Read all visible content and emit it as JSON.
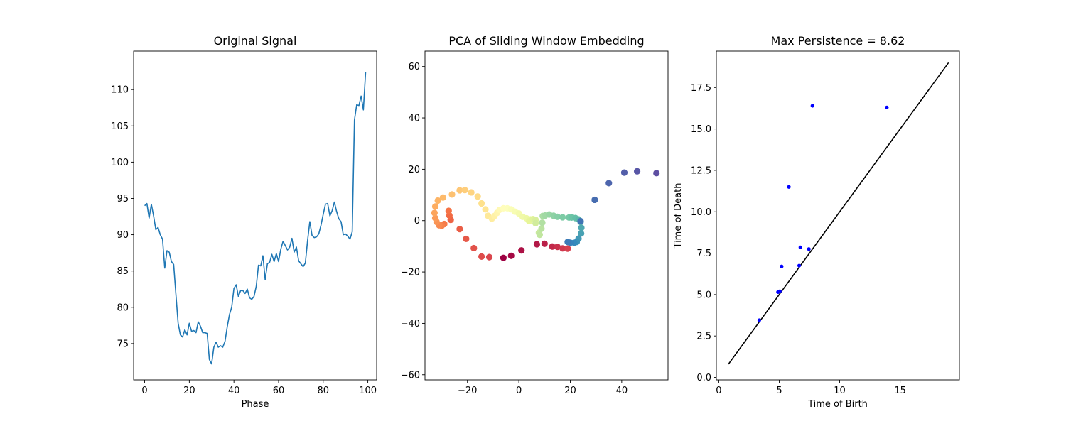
{
  "chart_data": [
    {
      "type": "line",
      "title": "Original Signal",
      "xlabel": "Phase",
      "ylabel": "",
      "xlim": [
        -4.95,
        103.95
      ],
      "ylim": [
        70.0,
        115.3
      ],
      "xticks": [
        0,
        20,
        40,
        60,
        80,
        100
      ],
      "yticks": [
        75,
        80,
        85,
        90,
        95,
        100,
        105,
        110
      ],
      "ytick_labels": [
        "75",
        "80",
        "85",
        "90",
        "95",
        "100",
        "105",
        "110"
      ],
      "color": "#1f77b4",
      "series": [
        {
          "x": [
            0,
            1,
            2,
            3,
            4,
            5,
            6,
            7,
            8,
            9,
            10,
            11,
            12,
            13,
            14,
            15,
            16,
            17,
            18,
            19,
            20,
            21,
            22,
            23,
            24,
            25,
            26,
            27,
            28,
            29,
            30,
            31,
            32,
            33,
            34,
            35,
            36,
            37,
            38,
            39,
            40,
            41,
            42,
            43,
            44,
            45,
            46,
            47,
            48,
            49,
            50,
            51,
            52,
            53,
            54,
            55,
            56,
            57,
            58,
            59,
            60,
            61,
            62,
            63,
            64,
            65,
            66,
            67,
            68,
            69,
            70,
            71,
            72,
            73,
            74,
            75,
            76,
            77,
            78,
            79,
            80,
            81,
            82,
            83,
            84,
            85,
            86,
            87,
            88,
            89,
            90,
            91,
            92,
            93,
            94,
            95,
            96,
            97,
            98,
            99
          ],
          "values": [
            94.0,
            94.3,
            92.3,
            94.2,
            92.6,
            90.7,
            91.0,
            90.0,
            89.4,
            85.4,
            87.8,
            87.6,
            86.3,
            85.9,
            81.8,
            77.8,
            76.2,
            75.9,
            76.9,
            76.2,
            77.8,
            76.7,
            76.8,
            76.5,
            78.0,
            77.4,
            76.5,
            76.5,
            76.4,
            72.8,
            72.2,
            74.5,
            75.2,
            74.5,
            74.7,
            74.5,
            75.3,
            77.3,
            79.0,
            80.0,
            82.6,
            83.1,
            81.5,
            82.3,
            82.3,
            81.9,
            82.5,
            81.3,
            81.1,
            81.5,
            82.9,
            85.8,
            85.7,
            87.1,
            83.8,
            86.0,
            86.2,
            87.3,
            86.3,
            87.4,
            86.3,
            88.0,
            89.1,
            88.5,
            87.9,
            88.3,
            89.5,
            87.6,
            88.3,
            86.4,
            86.0,
            85.6,
            86.1,
            89.2,
            91.8,
            89.9,
            89.6,
            89.7,
            90.1,
            91.3,
            92.8,
            94.2,
            94.3,
            92.6,
            93.3,
            94.5,
            93.2,
            92.2,
            91.8,
            90.0,
            90.1,
            89.8,
            89.4,
            90.4,
            105.8,
            107.9,
            107.8,
            109.1,
            107.2,
            112.4
          ]
        }
      ]
    },
    {
      "type": "scatter",
      "title": "PCA of Sliding Window Embedding",
      "xlabel": "",
      "ylabel": "",
      "xlim": [
        -36.5,
        58.0
      ],
      "ylim": [
        -62.0,
        66.0
      ],
      "xticks": [
        -20,
        0,
        20,
        40
      ],
      "xtick_labels": [
        "−20",
        "0",
        "20",
        "40"
      ],
      "yticks": [
        -60,
        -40,
        -20,
        0,
        20,
        40,
        60
      ],
      "ytick_labels": [
        "−60",
        "−40",
        "−20",
        "0",
        "20",
        "40",
        "60"
      ],
      "colormap": "Spectral",
      "points": [
        [
          -6,
          -14.5
        ],
        [
          -3,
          -13.7
        ],
        [
          1,
          -11.6
        ],
        [
          7,
          -9.2
        ],
        [
          10,
          -9.0
        ],
        [
          13,
          -10.1
        ],
        [
          15,
          -10.2
        ],
        [
          17,
          -10.8
        ],
        [
          19,
          -10.9
        ],
        [
          -11.5,
          -14.2
        ],
        [
          -14.5,
          -14.0
        ],
        [
          -17.5,
          -10.7
        ],
        [
          -20.5,
          -7.1
        ],
        [
          -23,
          -3.3
        ],
        [
          -26.5,
          0.3
        ],
        [
          -27,
          2.0
        ],
        [
          -27.3,
          3.8
        ],
        [
          -29,
          -1.3
        ],
        [
          -30,
          -2.0
        ],
        [
          -31,
          -1.8
        ],
        [
          -32,
          -0.5
        ],
        [
          -32.5,
          1.0
        ],
        [
          -32.8,
          3.0
        ],
        [
          -32.5,
          5.5
        ],
        [
          -31.5,
          7.8
        ],
        [
          -29.5,
          9.0
        ],
        [
          -26,
          10.2
        ],
        [
          -23,
          11.8
        ],
        [
          -21,
          11.9
        ],
        [
          -18.5,
          11.0
        ],
        [
          -16,
          9.4
        ],
        [
          -14.5,
          6.7
        ],
        [
          -13,
          4.4
        ],
        [
          -12,
          1.9
        ],
        [
          -10.5,
          0.8
        ],
        [
          -9.5,
          1.8
        ],
        [
          -8.5,
          3.0
        ],
        [
          -7.5,
          4.2
        ],
        [
          -6,
          4.8
        ],
        [
          -4.5,
          4.8
        ],
        [
          -3,
          4.4
        ],
        [
          -1.5,
          3.5
        ],
        [
          0,
          2.8
        ],
        [
          1.5,
          1.5
        ],
        [
          3,
          0.9
        ],
        [
          4.5,
          0.5
        ],
        [
          4,
          -0.2
        ],
        [
          5.5,
          0.6
        ],
        [
          6.5,
          0.3
        ],
        [
          6.5,
          -1.0
        ],
        [
          7.8,
          -4.7
        ],
        [
          8.1,
          -5.5
        ],
        [
          8.8,
          -3.1
        ],
        [
          9.1,
          -0.8
        ],
        [
          9.3,
          1.8
        ],
        [
          10.2,
          2.0
        ],
        [
          11.8,
          2.4
        ],
        [
          13.5,
          1.9
        ],
        [
          15,
          1.5
        ],
        [
          17,
          1.3
        ],
        [
          19.5,
          1.2
        ],
        [
          20.5,
          1.2
        ],
        [
          22,
          1.0
        ],
        [
          23.2,
          0.5
        ],
        [
          24,
          -0.5
        ],
        [
          24.3,
          -2.8
        ],
        [
          24.2,
          -5.0
        ],
        [
          23.2,
          -7.0
        ],
        [
          22.5,
          -8.3
        ],
        [
          21.5,
          -8.6
        ],
        [
          20,
          -8.6
        ],
        [
          19,
          -8.3
        ],
        [
          24,
          -0.2
        ],
        [
          29.5,
          8.1
        ],
        [
          35,
          14.6
        ],
        [
          41,
          18.7
        ],
        [
          46,
          19.2
        ],
        [
          53.5,
          18.5
        ]
      ]
    },
    {
      "type": "scatter",
      "title": "Max Persistence = 8.62",
      "xlabel": "Time of Birth",
      "ylabel": "Time of Death",
      "xlim": [
        -0.2,
        19.9
      ],
      "ylim": [
        -0.15,
        19.7
      ],
      "xticks": [
        0,
        5,
        10,
        15
      ],
      "yticks": [
        0.0,
        2.5,
        5.0,
        7.5,
        10.0,
        12.5,
        15.0,
        17.5
      ],
      "ytick_labels": [
        "0.0",
        "2.5",
        "5.0",
        "7.5",
        "10.0",
        "12.5",
        "15.0",
        "17.5"
      ],
      "point_color": "#0000ff",
      "diagonal": [
        [
          0.8,
          0.8
        ],
        [
          19.0,
          19.0
        ]
      ],
      "points": [
        [
          3.35,
          3.45
        ],
        [
          4.9,
          5.15
        ],
        [
          5.05,
          5.2
        ],
        [
          5.2,
          6.7
        ],
        [
          5.8,
          11.5
        ],
        [
          6.65,
          6.75
        ],
        [
          6.75,
          7.85
        ],
        [
          7.45,
          7.75
        ],
        [
          7.75,
          16.4
        ],
        [
          13.9,
          16.3
        ]
      ]
    }
  ]
}
